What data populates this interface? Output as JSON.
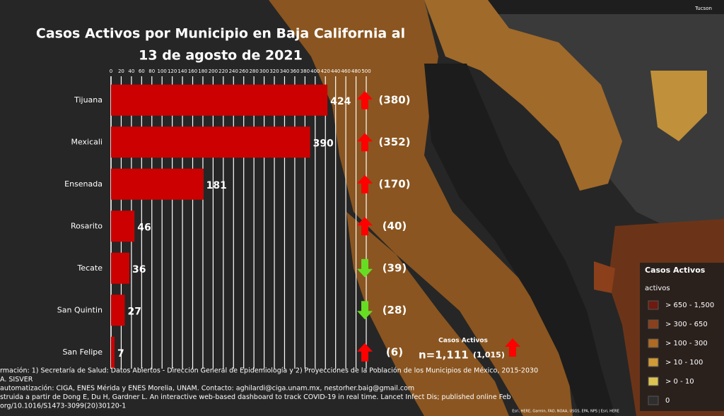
{
  "chart_data": {
    "type": "bar",
    "orientation": "horizontal",
    "title": "Casos Activos por Municipio en Baja California al",
    "subtitle": "13 de agosto de 2021",
    "categories": [
      "Tijuana",
      "Mexicali",
      "Ensenada",
      "Rosarito",
      "Tecate",
      "San Quintin",
      "San Felipe"
    ],
    "values": [
      424,
      390,
      181,
      46,
      36,
      27,
      7
    ],
    "color": "#cc0000",
    "previous_values": [
      380,
      352,
      170,
      40,
      39,
      28,
      6
    ],
    "previous_value_labels": [
      "(380)",
      "(352)",
      "(170)",
      "(40)",
      "(39)",
      "(28)",
      "(6)"
    ],
    "up_color": "#ff0000",
    "down_color": "#66dd22",
    "xlim": [
      0,
      500
    ],
    "xticks": [
      0,
      20,
      40,
      60,
      80,
      100,
      120,
      140,
      160,
      180,
      200,
      220,
      240,
      260,
      280,
      300,
      320,
      340,
      360,
      380,
      400,
      420,
      440,
      460,
      480,
      500
    ],
    "grid": true,
    "total": {
      "label": "Casos Activos",
      "value": 1111,
      "value_label": "n=1,111",
      "previous_value": 1015,
      "previous_label": "(1,015)"
    }
  },
  "legend": {
    "title": "Casos Activos",
    "subtitle": "activos",
    "items": [
      {
        "label": "> 650 - 1,500",
        "color": "#6e1a10"
      },
      {
        "label": "> 300 - 650",
        "color": "#8b3f1a"
      },
      {
        "label": "> 100 - 300",
        "color": "#b06a22"
      },
      {
        "label": "> 10 - 100",
        "color": "#d09a35"
      },
      {
        "label": "> 0 - 10",
        "color": "#dcc252"
      },
      {
        "label": "0",
        "color": "#2e2e2e"
      }
    ]
  },
  "map": {
    "place": "Tucson",
    "attribution": "Esri, HERE, Garmin, FAO, NOAA, USGS, EPA, NPS | Esri, HERE"
  },
  "footer": [
    "rmación: 1) Secretaría de Salud: Datos Abiertos - Dirección General de Epidemiología y 2) Proyecciones de la Población de los Municipios de México, 2015-2030",
    "A. SISVER",
    "automatización: CIGA, ENES Mérida y ENES Morelia, UNAM. Contacto: aghilardi@ciga.unam.mx, nestorher.baig@gmail.com",
    "struida a partir de Dong E, Du H, Gardner L. An interactive web-based dashboard to track COVID-19 in real time. Lancet Infect Dis; published online Feb",
    "org/10.1016/S1473-3099(20)30120-1"
  ]
}
